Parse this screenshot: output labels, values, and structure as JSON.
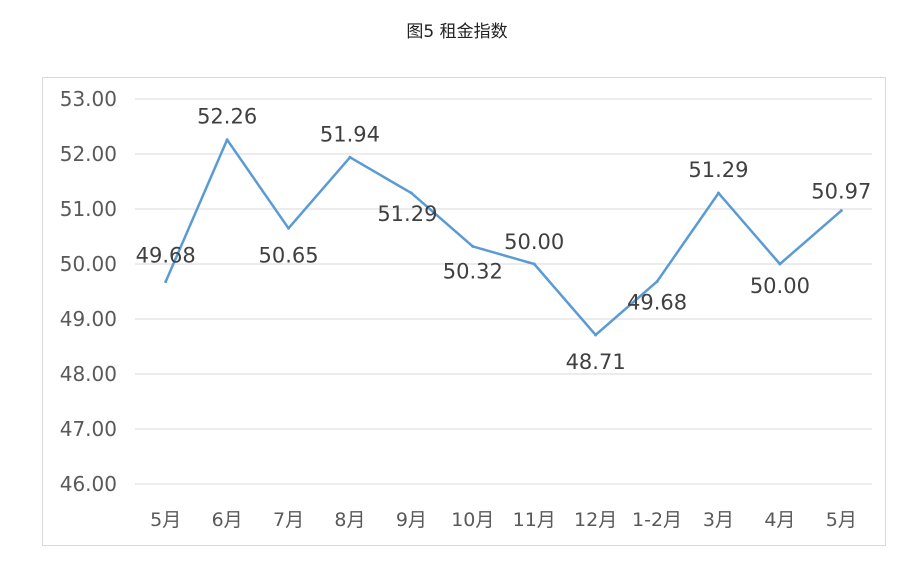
{
  "chart_data": {
    "type": "line",
    "title": "图5 租金指数",
    "xlabel": "",
    "ylabel": "",
    "categories": [
      "5月",
      "6月",
      "7月",
      "8月",
      "9月",
      "10月",
      "11月",
      "12月",
      "1-2月",
      "3月",
      "4月",
      "5月"
    ],
    "series": [
      {
        "values": [
          49.68,
          52.26,
          50.65,
          51.94,
          51.29,
          50.32,
          50.0,
          48.71,
          49.68,
          51.29,
          50.0,
          50.97
        ],
        "data_labels": [
          "49.68",
          "52.26",
          "50.65",
          "51.94",
          "51.29",
          "50.32",
          "50.00",
          "48.71",
          "49.68",
          "51.29",
          "50.00",
          "50.97"
        ],
        "color": "#5b9bd5"
      }
    ],
    "ylim": [
      46,
      53
    ],
    "yticks": [
      "46.00",
      "47.00",
      "48.00",
      "49.00",
      "50.00",
      "51.00",
      "52.00",
      "53.00"
    ],
    "grid": true,
    "legend": "none"
  }
}
